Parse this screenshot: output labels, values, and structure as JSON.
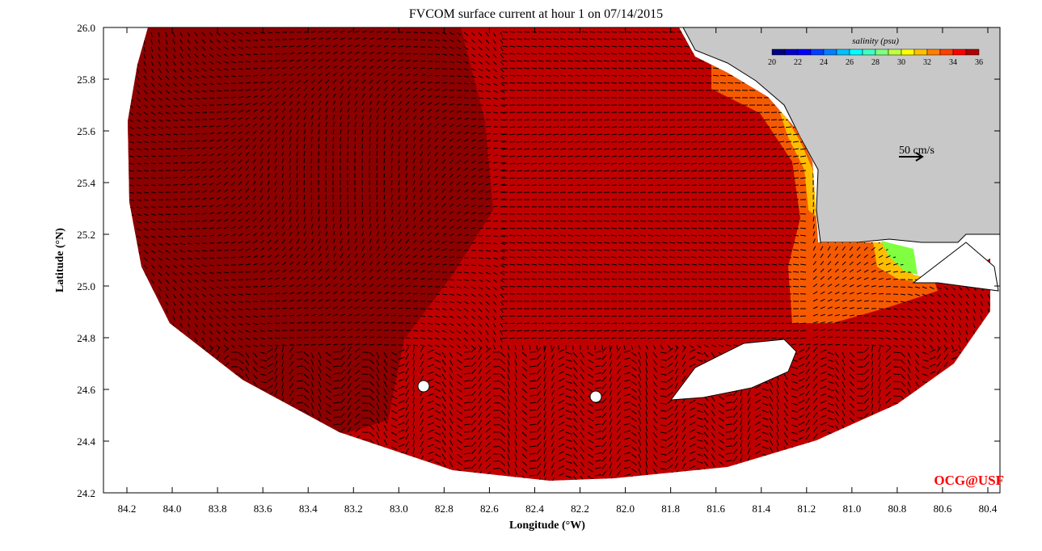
{
  "title": "FVCOM surface current at hour 1 on 07/14/2015",
  "xlabel": "Longitude (°W)",
  "ylabel": "Latitude (°N)",
  "x_ticks": [
    "84.2",
    "84.0",
    "83.8",
    "83.6",
    "83.4",
    "83.2",
    "83.0",
    "82.8",
    "82.6",
    "82.4",
    "82.2",
    "82.0",
    "81.8",
    "81.6",
    "81.4",
    "81.2",
    "81.0",
    "80.8",
    "80.6",
    "80.4"
  ],
  "y_ticks": [
    "26.0",
    "25.8",
    "25.6",
    "25.4",
    "25.2",
    "25.0",
    "24.8",
    "24.6",
    "24.4",
    "24.2"
  ],
  "colorbar": {
    "label": "salinity (psu)",
    "ticks": [
      "20",
      "22",
      "24",
      "26",
      "28",
      "30",
      "32",
      "34",
      "36"
    ],
    "colors": [
      "#000080",
      "#0000c8",
      "#0000ff",
      "#0040ff",
      "#0080ff",
      "#00c0ff",
      "#00ffff",
      "#40ffc0",
      "#80ff80",
      "#c0ff40",
      "#ffff00",
      "#ffc000",
      "#ff8000",
      "#ff4000",
      "#ff0000",
      "#b00000"
    ]
  },
  "scale_arrow_label": "50 cm/s",
  "credit": "OCG@USF",
  "colors": {
    "ocean_main": "#c00000",
    "ocean_offshore": "#8c0000",
    "land": "#c8c8c8",
    "credit": "#ff0000"
  }
}
